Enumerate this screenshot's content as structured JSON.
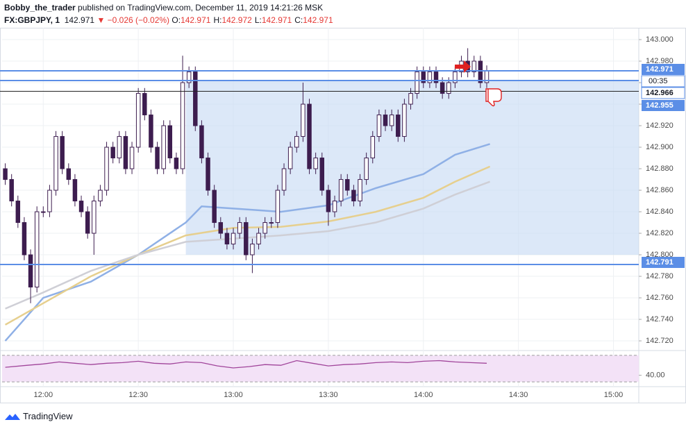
{
  "header": {
    "author": "Bobby_the_trader",
    "text": "published on TradingView.com, December 11, 2019 14:21:26 MSK",
    "symbol": "FX:GBPJPY, 1",
    "last": "142.971",
    "change": "▼ −0.026 (−0.02%)",
    "ohlc": [
      {
        "k": "O:",
        "v": "142.971"
      },
      {
        "k": "H:",
        "v": "142.972"
      },
      {
        "k": "L:",
        "v": "142.971"
      },
      {
        "k": "C:",
        "v": "142.971"
      }
    ]
  },
  "footer": {
    "brand": "TradingView"
  },
  "chart_data": [
    {
      "type": "candlestick",
      "x": [
        "11:48",
        "11:50",
        "11:52",
        "11:54",
        "11:56",
        "11:58",
        "12:00",
        "12:02",
        "12:04",
        "12:06",
        "12:08",
        "12:10",
        "12:12",
        "12:14",
        "12:16",
        "12:18",
        "12:20",
        "12:22",
        "12:24",
        "12:26",
        "12:28",
        "12:30",
        "12:32",
        "12:34",
        "12:36",
        "12:38",
        "12:40",
        "12:42",
        "12:44",
        "12:46",
        "12:48",
        "12:50",
        "12:52",
        "12:54",
        "12:56",
        "12:58",
        "13:00",
        "13:02",
        "13:04",
        "13:06",
        "13:08",
        "13:10",
        "13:12",
        "13:14",
        "13:16",
        "13:18",
        "13:20",
        "13:22",
        "13:24",
        "13:26",
        "13:28",
        "13:30",
        "13:32",
        "13:34",
        "13:36",
        "13:38",
        "13:40",
        "13:42",
        "13:44",
        "13:46",
        "13:48",
        "13:50",
        "13:52",
        "13:54",
        "13:56",
        "13:58",
        "14:00",
        "14:02",
        "14:04",
        "14:06",
        "14:08",
        "14:10",
        "14:12",
        "14:14",
        "14:16",
        "14:18",
        "14:20"
      ],
      "open": [
        142.88,
        142.87,
        142.85,
        142.83,
        142.8,
        142.77,
        142.84,
        142.84,
        142.86,
        142.91,
        142.88,
        142.87,
        142.85,
        142.84,
        142.82,
        142.85,
        142.86,
        142.9,
        142.89,
        142.91,
        142.88,
        142.9,
        142.95,
        142.93,
        142.9,
        142.88,
        142.92,
        142.89,
        142.88,
        142.96,
        142.97,
        142.92,
        142.89,
        142.86,
        142.83,
        142.82,
        142.81,
        142.82,
        142.83,
        142.8,
        142.81,
        142.82,
        142.83,
        142.83,
        142.86,
        142.88,
        142.9,
        142.91,
        142.94,
        142.88,
        142.89,
        142.86,
        142.84,
        142.85,
        142.87,
        142.86,
        142.85,
        142.87,
        142.89,
        142.91,
        142.93,
        142.92,
        142.93,
        142.91,
        142.94,
        142.95,
        142.97,
        142.96,
        142.97,
        142.96,
        142.95,
        142.96,
        142.97,
        142.98,
        142.97,
        142.98,
        142.96
      ],
      "high": [
        142.885,
        142.875,
        142.855,
        142.835,
        142.805,
        142.845,
        142.845,
        142.865,
        142.915,
        142.915,
        142.885,
        142.875,
        142.855,
        142.845,
        142.855,
        142.865,
        142.905,
        142.905,
        142.915,
        142.915,
        142.905,
        142.955,
        142.955,
        142.935,
        142.905,
        142.925,
        142.925,
        142.895,
        142.985,
        142.975,
        142.975,
        142.925,
        142.895,
        142.865,
        142.835,
        142.825,
        142.825,
        142.835,
        142.835,
        142.815,
        142.825,
        142.835,
        142.835,
        142.865,
        142.885,
        142.905,
        142.915,
        142.96,
        142.945,
        142.895,
        142.895,
        142.865,
        142.855,
        142.875,
        142.875,
        142.865,
        142.875,
        142.895,
        142.915,
        142.935,
        142.935,
        142.935,
        142.935,
        142.945,
        142.955,
        142.975,
        142.975,
        142.975,
        142.975,
        142.965,
        142.965,
        142.975,
        142.985,
        142.992,
        142.985,
        142.985,
        142.976
      ],
      "low": [
        142.865,
        142.845,
        142.825,
        142.795,
        142.755,
        142.765,
        142.835,
        142.835,
        142.855,
        142.875,
        142.865,
        142.845,
        142.835,
        142.815,
        142.8,
        142.845,
        142.855,
        142.885,
        142.885,
        142.875,
        142.875,
        142.895,
        142.925,
        142.895,
        142.875,
        142.875,
        142.885,
        142.875,
        142.875,
        142.955,
        142.915,
        142.885,
        142.855,
        142.825,
        142.815,
        142.805,
        142.805,
        142.815,
        142.795,
        142.783,
        142.805,
        142.815,
        142.825,
        142.825,
        142.855,
        142.875,
        142.895,
        142.905,
        142.875,
        142.875,
        142.855,
        142.827,
        142.835,
        142.845,
        142.855,
        142.845,
        142.845,
        142.865,
        142.885,
        142.905,
        142.915,
        142.915,
        142.905,
        142.905,
        142.935,
        142.945,
        142.955,
        142.955,
        142.955,
        142.945,
        142.945,
        142.955,
        142.965,
        142.965,
        142.965,
        142.955,
        142.955
      ],
      "close": [
        142.87,
        142.85,
        142.83,
        142.8,
        142.77,
        142.84,
        142.84,
        142.86,
        142.91,
        142.88,
        142.87,
        142.85,
        142.84,
        142.82,
        142.85,
        142.86,
        142.9,
        142.89,
        142.91,
        142.88,
        142.9,
        142.95,
        142.93,
        142.9,
        142.88,
        142.92,
        142.89,
        142.88,
        142.96,
        142.97,
        142.92,
        142.89,
        142.86,
        142.83,
        142.82,
        142.81,
        142.82,
        142.83,
        142.8,
        142.81,
        142.82,
        142.83,
        142.83,
        142.86,
        142.88,
        142.9,
        142.91,
        142.94,
        142.88,
        142.89,
        142.86,
        142.84,
        142.85,
        142.87,
        142.86,
        142.85,
        142.87,
        142.89,
        142.91,
        142.93,
        142.92,
        142.93,
        142.91,
        142.94,
        142.95,
        142.97,
        142.96,
        142.97,
        142.96,
        142.95,
        142.96,
        142.97,
        142.98,
        142.97,
        142.98,
        142.96,
        142.971
      ],
      "series": [
        {
          "color": "#8fb0e6",
          "x": [
            "11:48",
            "12:00",
            "12:15",
            "12:30",
            "12:45",
            "12:50",
            "13:00",
            "13:15",
            "13:30",
            "13:45",
            "14:00",
            "14:10",
            "14:21"
          ],
          "values": [
            142.72,
            142.76,
            142.775,
            142.8,
            142.83,
            142.845,
            142.843,
            142.84,
            142.846,
            142.862,
            142.875,
            142.893,
            142.903
          ]
        },
        {
          "color": "#e6cf8e",
          "x": [
            "11:48",
            "12:00",
            "12:15",
            "12:30",
            "12:45",
            "13:00",
            "13:15",
            "13:30",
            "13:45",
            "14:00",
            "14:10",
            "14:21"
          ],
          "values": [
            142.735,
            142.755,
            142.78,
            142.8,
            142.818,
            142.825,
            142.826,
            142.831,
            142.84,
            142.853,
            142.868,
            142.882
          ]
        },
        {
          "color": "#cfcfd6",
          "x": [
            "11:48",
            "12:00",
            "12:15",
            "12:30",
            "12:45",
            "13:00",
            "13:15",
            "13:30",
            "13:45",
            "14:00",
            "14:10",
            "14:21"
          ],
          "values": [
            142.75,
            142.765,
            142.785,
            142.8,
            142.812,
            142.815,
            142.818,
            142.822,
            142.83,
            142.843,
            142.856,
            142.868
          ]
        }
      ],
      "zone": {
        "x0": "12:45",
        "low": 142.8,
        "high": 142.962,
        "color": "#c9dbf5"
      },
      "levels": [
        {
          "value": 142.971,
          "color": "#5b8ee6"
        },
        {
          "value": 142.962,
          "color": "#5b8ee6"
        },
        {
          "value": 142.952,
          "color": "#222222"
        },
        {
          "value": 142.791,
          "color": "#5b8ee6"
        }
      ],
      "price_labels": [
        {
          "value": 142.971,
          "color": "#5b8ee6"
        },
        {
          "value": 142.966,
          "color": "#ffffff"
        },
        {
          "value": 142.955,
          "color": "#5b8ee6"
        },
        {
          "value": 142.791,
          "color": "#5b8ee6"
        }
      ],
      "countdown": "00:35",
      "up_color": "#ffffff",
      "down_color": "#3d1d4f",
      "xlim": [
        "11:47",
        "15:08"
      ],
      "xticks": [
        "12:00",
        "12:30",
        "13:00",
        "13:30",
        "14:00",
        "14:30",
        "15:00"
      ],
      "ylim": [
        142.711,
        143.011
      ],
      "yticks": [
        {
          "value": 142.72,
          "label": "142.720"
        },
        {
          "value": 142.74,
          "label": "142.740"
        },
        {
          "value": 142.76,
          "label": "142.760"
        },
        {
          "value": 142.78,
          "label": "142.780"
        },
        {
          "value": 142.8,
          "label": "142.800"
        },
        {
          "value": 142.82,
          "label": "142.820"
        },
        {
          "value": 142.84,
          "label": "142.840"
        },
        {
          "value": 142.86,
          "label": "142.860"
        },
        {
          "value": 142.88,
          "label": "142.880"
        },
        {
          "value": 142.9,
          "label": "142.900"
        },
        {
          "value": 142.92,
          "label": "142.920"
        },
        {
          "value": 142.94,
          "label": "142.940"
        },
        {
          "value": 142.96,
          "label": "142.960"
        },
        {
          "value": 142.98,
          "label": "142.980"
        },
        {
          "value": 143,
          "label": "143.000"
        }
      ],
      "grid": true
    },
    {
      "type": "line",
      "x": [
        "11:48",
        "11:55",
        "12:00",
        "12:05",
        "12:10",
        "12:15",
        "12:20",
        "12:25",
        "12:30",
        "12:35",
        "12:40",
        "12:45",
        "12:50",
        "12:55",
        "13:00",
        "13:05",
        "13:10",
        "13:15",
        "13:20",
        "13:25",
        "13:30",
        "13:35",
        "13:40",
        "13:45",
        "13:50",
        "13:55",
        "14:00",
        "14:05",
        "14:10",
        "14:15",
        "14:20"
      ],
      "values": [
        52,
        55,
        57,
        60,
        58,
        56,
        58,
        59,
        61,
        58,
        57,
        60,
        59,
        54,
        51,
        53,
        56,
        55,
        62,
        58,
        54,
        56,
        57,
        59,
        60,
        59,
        61,
        62,
        60,
        59,
        58
      ],
      "color": "#a0449a",
      "band": [
        30,
        70
      ],
      "band_color": "#f3e2f7",
      "xlim": [
        "11:47",
        "15:08"
      ],
      "ylim": [
        27,
        74
      ],
      "yticks": [
        {
          "value": 40,
          "label": "40.00"
        }
      ]
    }
  ]
}
